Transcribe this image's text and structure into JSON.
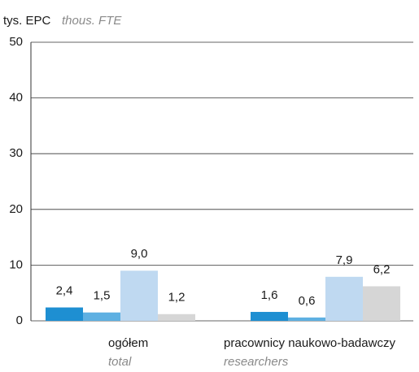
{
  "chart_data": {
    "type": "bar",
    "y_label": "tys. EPC",
    "y_label_en": "thous. FTE",
    "categories": [
      "ogółem",
      "pracownicy naukowo-badawczy"
    ],
    "categories_en": [
      "total",
      "researchers"
    ],
    "series": [
      {
        "color": "#1e8fd2",
        "values": [
          2.4,
          1.6
        ],
        "value_labels": [
          "2,4",
          "1,6"
        ]
      },
      {
        "color": "#5eb0e2",
        "values": [
          1.5,
          0.6
        ],
        "value_labels": [
          "1,5",
          "0,6"
        ]
      },
      {
        "color": "#bfd9f1",
        "values": [
          9.0,
          7.9
        ],
        "value_labels": [
          "9,0",
          "7,9"
        ]
      },
      {
        "color": "#d6d6d6",
        "values": [
          1.2,
          6.2
        ],
        "value_labels": [
          "1,2",
          "6,2"
        ]
      }
    ],
    "ylim": [
      0,
      50
    ],
    "yticks": [
      0,
      10,
      20,
      30,
      40,
      50
    ],
    "grid": true
  }
}
